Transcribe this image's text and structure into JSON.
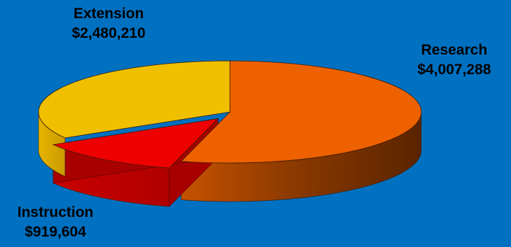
{
  "chart_data": {
    "type": "pie",
    "title": "",
    "slices": [
      {
        "label": "Research",
        "amount": "$4,007,288",
        "value": 4007288,
        "color": "#ee6100"
      },
      {
        "label": "Instruction",
        "amount": "$919,604",
        "value": 919604,
        "color": "#ee0000"
      },
      {
        "label": "Extension",
        "amount": "$2,480,210",
        "value": 2480210,
        "color": "#f0c000"
      }
    ],
    "style": "3d",
    "legend": "none"
  }
}
